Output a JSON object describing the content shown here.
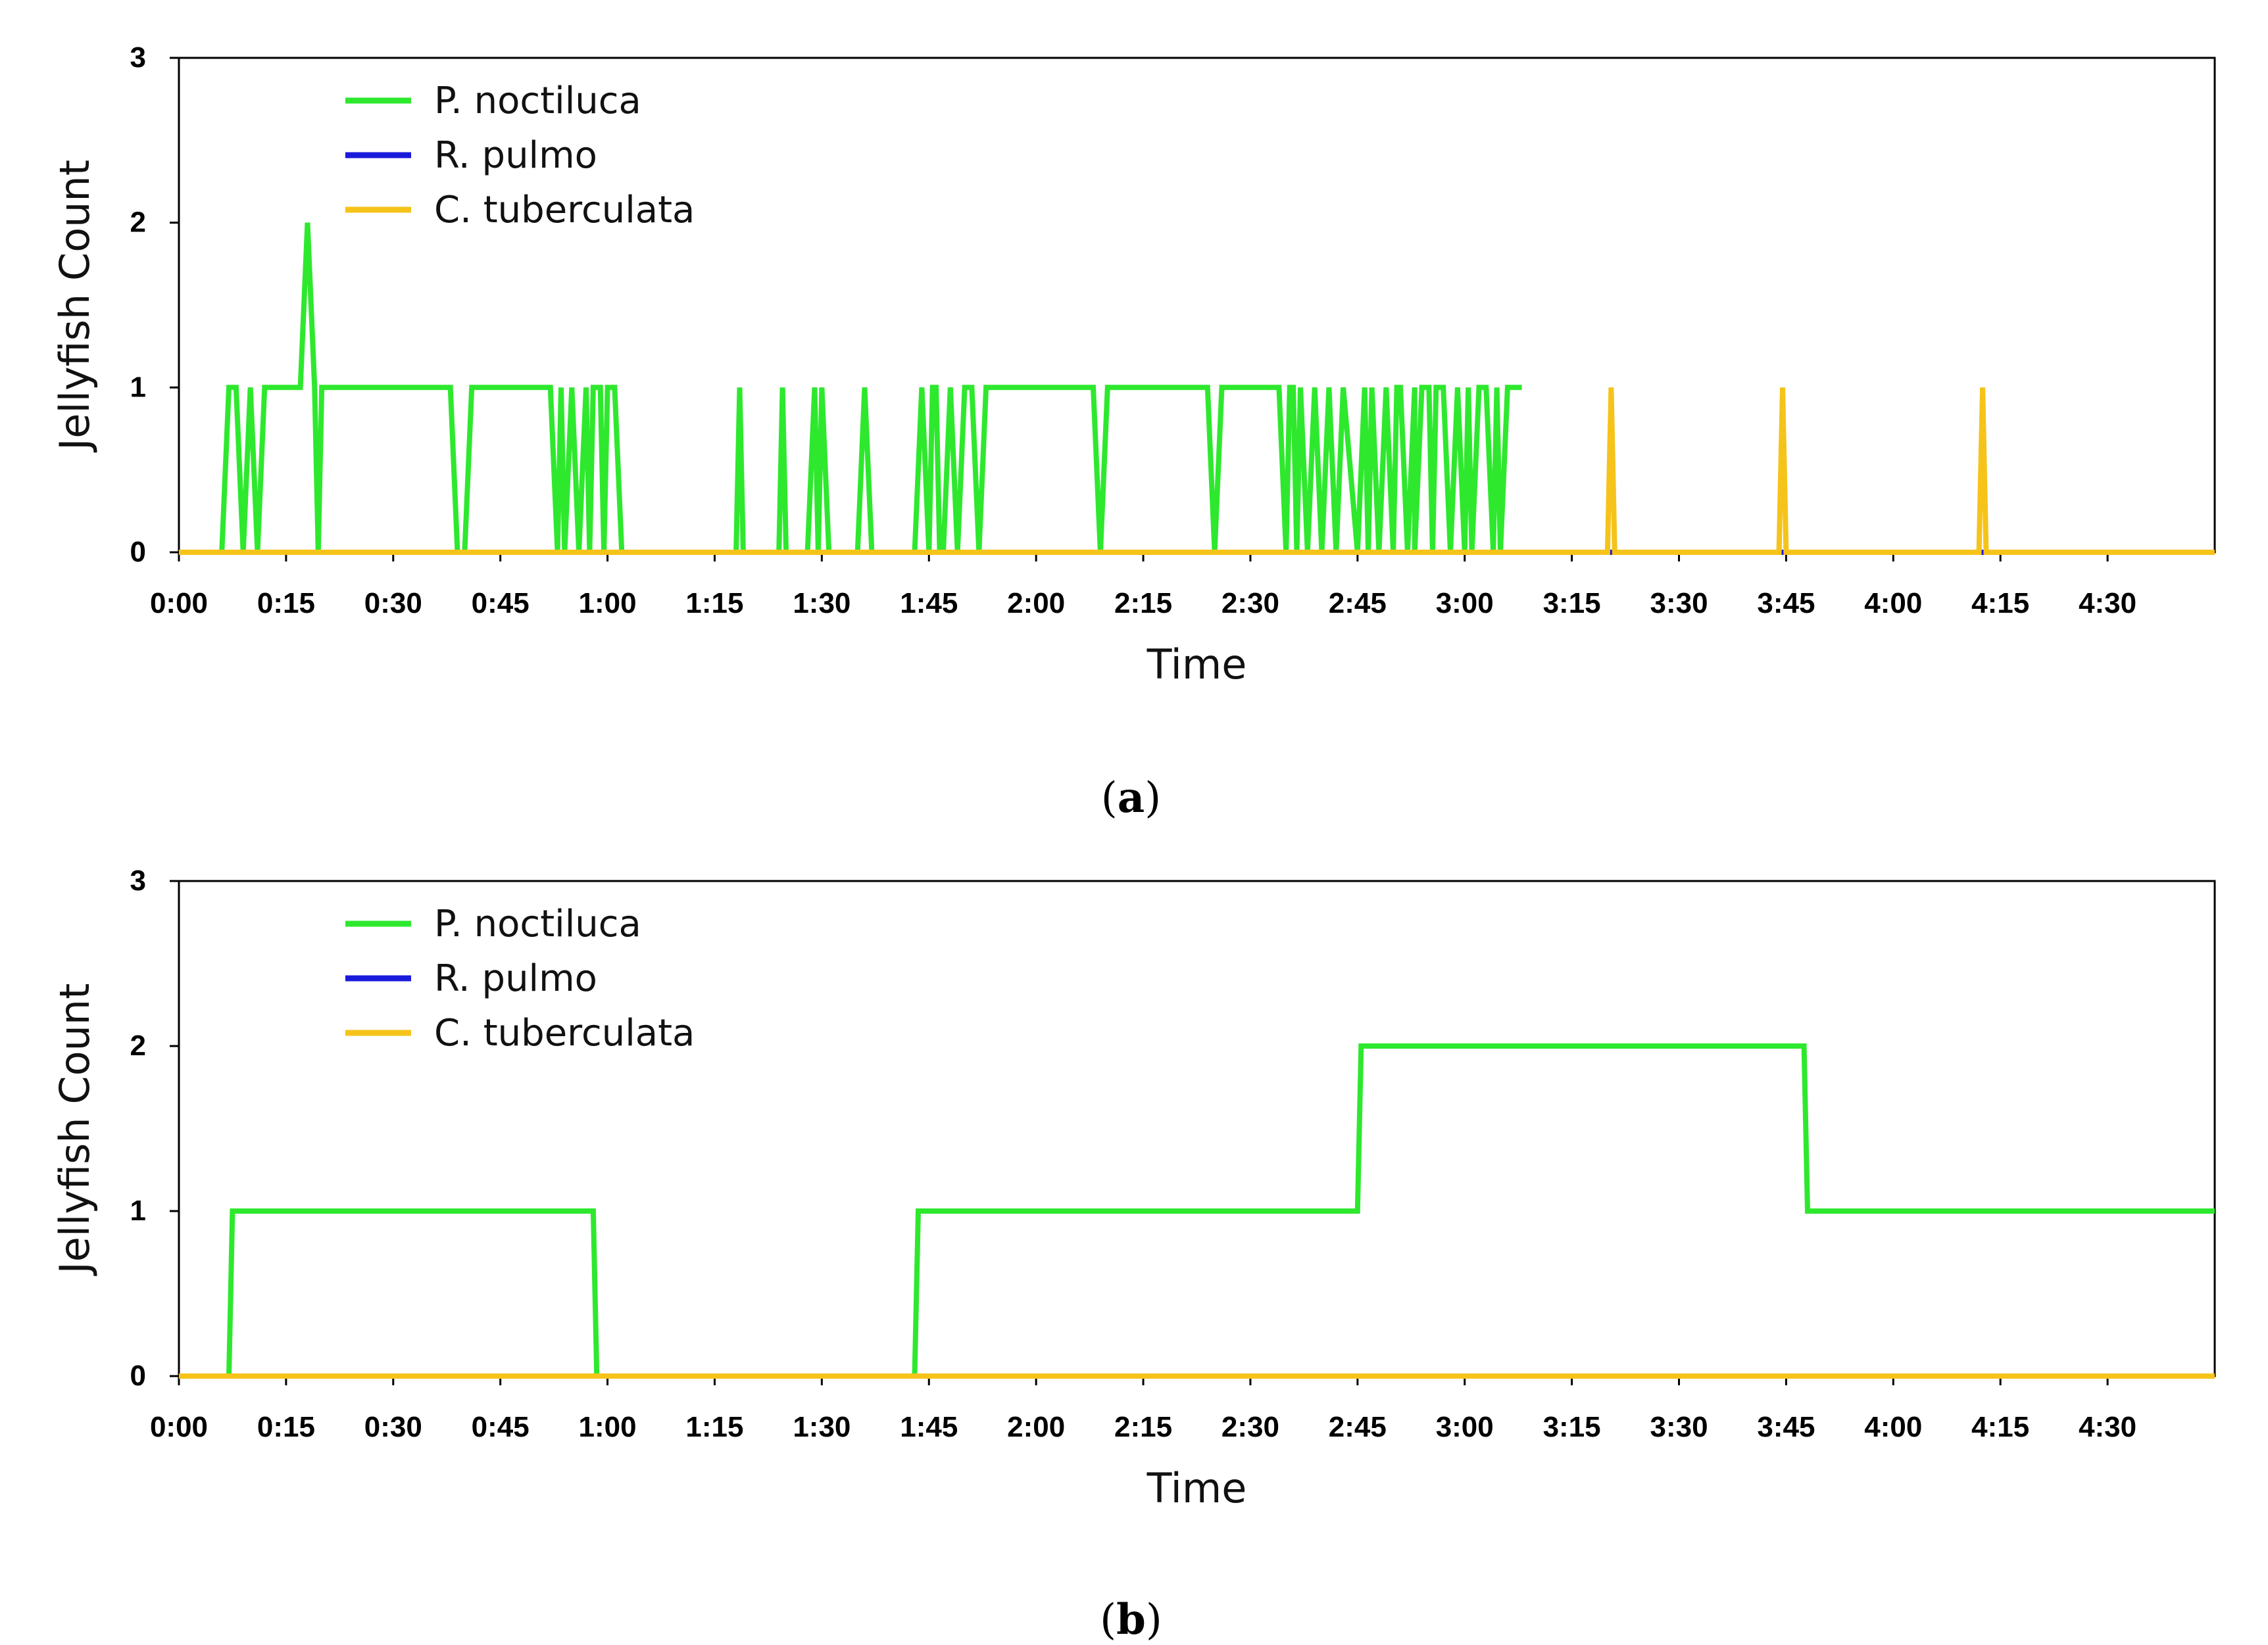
{
  "chart_data": [
    {
      "id": "a",
      "type": "line",
      "caption_letter": "a",
      "xlabel": "Time",
      "ylabel": "Jellyfish Count",
      "xlim": [
        0,
        285
      ],
      "ylim": [
        0,
        3
      ],
      "x_tick_values": [
        0,
        15,
        30,
        45,
        60,
        75,
        90,
        105,
        120,
        135,
        150,
        165,
        180,
        195,
        210,
        225,
        240,
        255,
        270
      ],
      "x_tick_labels": [
        "0:00",
        "0:15",
        "0:30",
        "0:45",
        "1:00",
        "1:15",
        "1:30",
        "1:45",
        "2:00",
        "2:15",
        "2:30",
        "2:45",
        "3:00",
        "3:15",
        "3:30",
        "3:45",
        "4:00",
        "4:15",
        "4:30"
      ],
      "y_ticks": [
        0,
        1,
        2,
        3
      ],
      "y_tick_labels": [
        "0",
        "1",
        "2",
        "3"
      ],
      "legend": {
        "position": "top-left",
        "entries": [
          "P. noctiluca",
          "R. pulmo",
          "C. tuberculata"
        ]
      },
      "series": [
        {
          "name": "P. noctiluca",
          "color": "#2ee82e",
          "points": [
            [
              0,
              0
            ],
            [
              6,
              0
            ],
            [
              7,
              1
            ],
            [
              8,
              1
            ],
            [
              9,
              0
            ],
            [
              10,
              1
            ],
            [
              11,
              0
            ],
            [
              12,
              1
            ],
            [
              17,
              1
            ],
            [
              18,
              2
            ],
            [
              19,
              1
            ],
            [
              19.5,
              0
            ],
            [
              20,
              1
            ],
            [
              38,
              1
            ],
            [
              39,
              0
            ],
            [
              40,
              0
            ],
            [
              41,
              1
            ],
            [
              52,
              1
            ],
            [
              53,
              0
            ],
            [
              53.5,
              1
            ],
            [
              54,
              0
            ],
            [
              55,
              1
            ],
            [
              56,
              0
            ],
            [
              57,
              1
            ],
            [
              57.5,
              0
            ],
            [
              58,
              1
            ],
            [
              58.5,
              1
            ],
            [
              59,
              1
            ],
            [
              59.5,
              0
            ],
            [
              60,
              1
            ],
            [
              61,
              1
            ],
            [
              62,
              0
            ],
            [
              78,
              0
            ],
            [
              78.5,
              1
            ],
            [
              79,
              0
            ],
            [
              84,
              0
            ],
            [
              84.5,
              1
            ],
            [
              85,
              0
            ],
            [
              88,
              0
            ],
            [
              89,
              1
            ],
            [
              89.5,
              0
            ],
            [
              89.5,
              0
            ],
            [
              90,
              1
            ],
            [
              91,
              0
            ],
            [
              95,
              0
            ],
            [
              96,
              1
            ],
            [
              97,
              0
            ],
            [
              103,
              0
            ],
            [
              104,
              1
            ],
            [
              105,
              0
            ],
            [
              105.5,
              1
            ],
            [
              106,
              1
            ],
            [
              106.5,
              0
            ],
            [
              107,
              0
            ],
            [
              108,
              1
            ],
            [
              109,
              0
            ],
            [
              110,
              1
            ],
            [
              111,
              1
            ],
            [
              112,
              0
            ],
            [
              113,
              1
            ],
            [
              128,
              1
            ],
            [
              129,
              0
            ],
            [
              130,
              1
            ],
            [
              144,
              1
            ],
            [
              145,
              0
            ],
            [
              146,
              1
            ],
            [
              154,
              1
            ],
            [
              155,
              0
            ],
            [
              155.5,
              1
            ],
            [
              156,
              1
            ],
            [
              156.5,
              0
            ],
            [
              157,
              1
            ],
            [
              158,
              0
            ],
            [
              159,
              1
            ],
            [
              160,
              0
            ],
            [
              161,
              1
            ],
            [
              162,
              0
            ],
            [
              163,
              1
            ],
            [
              165,
              0
            ],
            [
              166,
              1
            ],
            [
              166.5,
              0
            ],
            [
              167,
              1
            ],
            [
              168,
              0
            ],
            [
              169,
              1
            ],
            [
              170,
              0
            ],
            [
              170.5,
              1
            ],
            [
              171,
              1
            ],
            [
              172,
              0
            ],
            [
              173,
              1
            ],
            [
              173,
              0
            ],
            [
              174,
              1
            ],
            [
              175,
              1
            ],
            [
              175.5,
              0
            ],
            [
              176,
              1
            ],
            [
              177,
              1
            ],
            [
              178,
              0
            ],
            [
              179,
              1
            ],
            [
              180,
              0
            ],
            [
              180.5,
              1
            ],
            [
              181,
              0
            ],
            [
              182,
              1
            ],
            [
              183,
              1
            ],
            [
              184,
              0
            ],
            [
              184.5,
              1
            ],
            [
              185,
              0
            ],
            [
              186,
              1
            ],
            [
              187,
              1
            ],
            [
              188,
              1
            ]
          ]
        },
        {
          "name": "R. pulmo",
          "color": "#1a1adb",
          "points": [
            [
              0,
              0
            ],
            [
              285,
              0
            ]
          ]
        },
        {
          "name": "C. tuberculata",
          "color": "#f5c31a",
          "points": [
            [
              0,
              0
            ],
            [
              200,
              0
            ],
            [
              200.5,
              1
            ],
            [
              201,
              0
            ],
            [
              224,
              0
            ],
            [
              224.5,
              1
            ],
            [
              225,
              0
            ],
            [
              252,
              0
            ],
            [
              252.5,
              1
            ],
            [
              253,
              0
            ],
            [
              285,
              0
            ]
          ]
        }
      ]
    },
    {
      "id": "b",
      "type": "line",
      "caption_letter": "b",
      "xlabel": "Time",
      "ylabel": "Jellyfish Count",
      "xlim": [
        0,
        285
      ],
      "ylim": [
        0,
        3
      ],
      "x_tick_values": [
        0,
        15,
        30,
        45,
        60,
        75,
        90,
        105,
        120,
        135,
        150,
        165,
        180,
        195,
        210,
        225,
        240,
        255,
        270
      ],
      "x_tick_labels": [
        "0:00",
        "0:15",
        "0:30",
        "0:45",
        "1:00",
        "1:15",
        "1:30",
        "1:45",
        "2:00",
        "2:15",
        "2:30",
        "2:45",
        "3:00",
        "3:15",
        "3:30",
        "3:45",
        "4:00",
        "4:15",
        "4:30"
      ],
      "y_ticks": [
        0,
        1,
        2,
        3
      ],
      "y_tick_labels": [
        "0",
        "1",
        "2",
        "3"
      ],
      "legend": {
        "position": "top-left",
        "entries": [
          "P. noctiluca",
          "R. pulmo",
          "C. tuberculata"
        ]
      },
      "series": [
        {
          "name": "P. noctiluca",
          "color": "#2ee82e",
          "points": [
            [
              0,
              0
            ],
            [
              7,
              0
            ],
            [
              7.5,
              1
            ],
            [
              58,
              1
            ],
            [
              58.5,
              0
            ],
            [
              103,
              0
            ],
            [
              103.5,
              1
            ],
            [
              165,
              1
            ],
            [
              165.5,
              2
            ],
            [
              227.5,
              2
            ],
            [
              228,
              1
            ],
            [
              285,
              1
            ]
          ]
        },
        {
          "name": "R. pulmo",
          "color": "#1a1adb",
          "points": [
            [
              0,
              0
            ],
            [
              285,
              0
            ]
          ]
        },
        {
          "name": "C. tuberculata",
          "color": "#f5c31a",
          "points": [
            [
              0,
              0
            ],
            [
              285,
              0
            ]
          ]
        }
      ]
    }
  ]
}
